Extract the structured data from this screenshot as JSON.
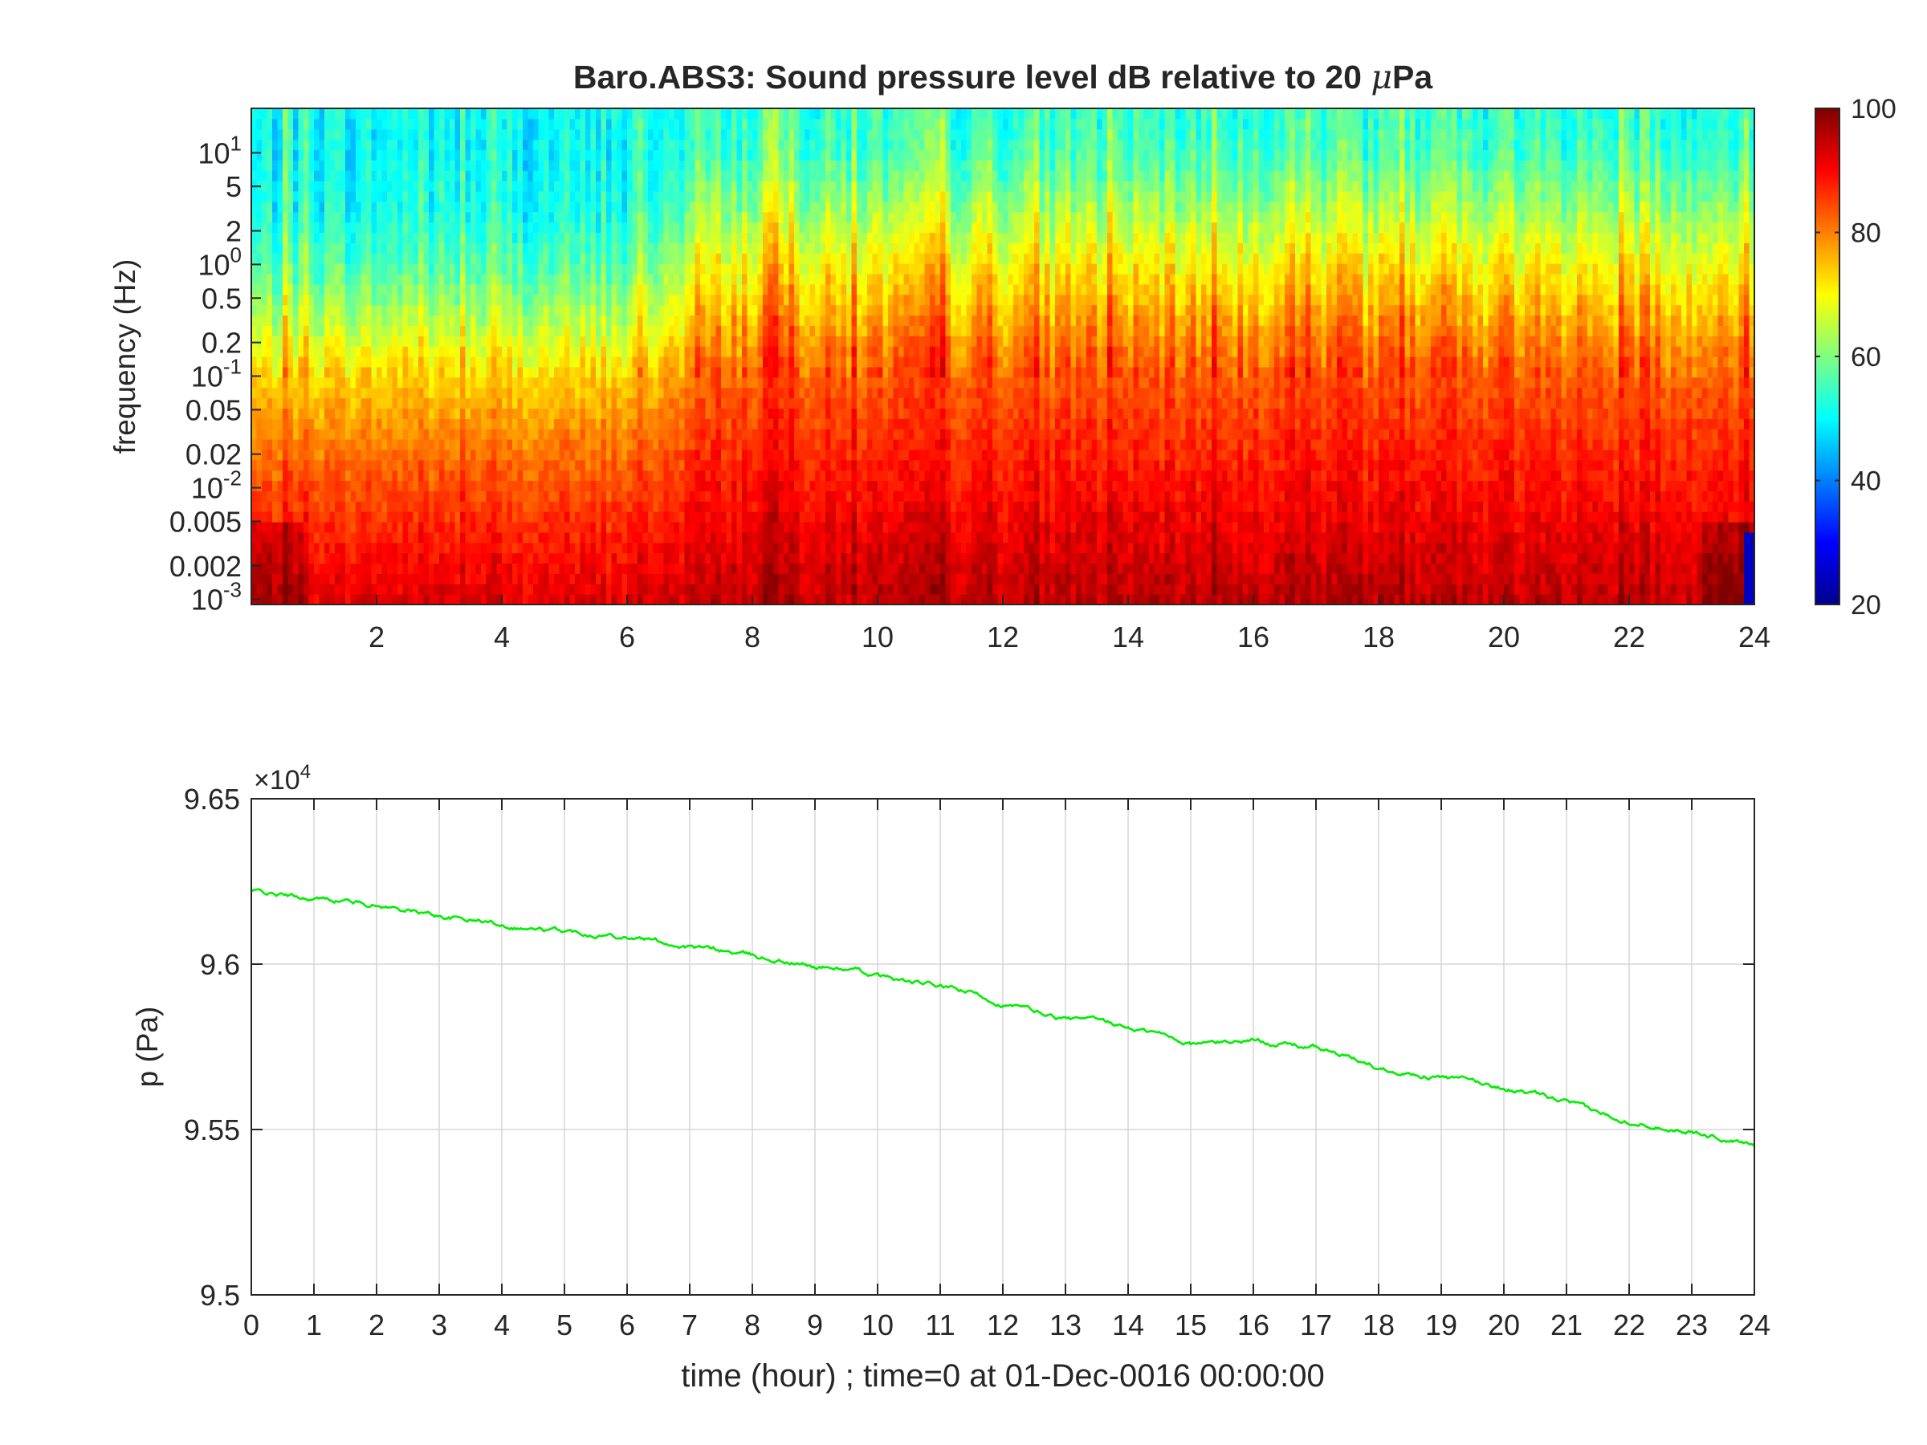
{
  "figure": {
    "background": "#ffffff",
    "axis_color": "#262626",
    "grid_color": "#d6d6d6"
  },
  "chart_data": [
    {
      "type": "heatmap",
      "title_prefix": "Baro.ABS3: Sound pressure level dB relative to 20 ",
      "title_mu": "μ",
      "title_suffix": "Pa",
      "xlabel": "",
      "ylabel": "frequency (Hz)",
      "x_scale": "linear",
      "y_scale": "log",
      "xlim": [
        0,
        24
      ],
      "ylim": [
        0.0009,
        25
      ],
      "x_ticks": [
        2,
        4,
        6,
        8,
        10,
        12,
        14,
        16,
        18,
        20,
        22,
        24
      ],
      "x_tick_labels": [
        "2",
        "4",
        "6",
        "8",
        "10",
        "12",
        "14",
        "16",
        "18",
        "20",
        "22",
        "24"
      ],
      "y_ticks_plain": [
        {
          "value": 5,
          "label": "5"
        },
        {
          "value": 2,
          "label": "2"
        },
        {
          "value": 0.5,
          "label": "0.5"
        },
        {
          "value": 0.2,
          "label": "0.2"
        },
        {
          "value": 0.05,
          "label": "0.05"
        },
        {
          "value": 0.02,
          "label": "0.02"
        },
        {
          "value": 0.005,
          "label": "0.005"
        },
        {
          "value": 0.002,
          "label": "0.002"
        }
      ],
      "y_ticks_power": [
        {
          "value": 10,
          "base": "10",
          "exp": "1"
        },
        {
          "value": 1,
          "base": "10",
          "exp": "0"
        },
        {
          "value": 0.1,
          "base": "10",
          "exp": "-1"
        },
        {
          "value": 0.01,
          "base": "10",
          "exp": "-2"
        },
        {
          "value": 0.001,
          "base": "10",
          "exp": "-3"
        }
      ],
      "colormap": "jet",
      "colorbar": {
        "range": [
          20,
          100
        ],
        "ticks": [
          20,
          40,
          60,
          80,
          100
        ],
        "tick_labels": [
          "20",
          "40",
          "60",
          "80",
          "100"
        ],
        "location": "right"
      },
      "description_profile_dB": {
        "log10_freq": [
          -3,
          -2.5,
          -2,
          -1.5,
          -1,
          -0.5,
          0,
          0.5,
          1,
          1.4
        ],
        "quiet_period_hours_0_to_7": [
          92,
          88,
          84,
          79,
          73,
          64,
          56,
          51,
          50,
          50
        ],
        "active_period_hours_7_to_24": [
          95,
          92,
          89,
          86,
          83,
          77,
          70,
          62,
          55,
          53
        ]
      },
      "grid": false
    },
    {
      "type": "line",
      "title": "",
      "xlabel": "time (hour) ; time=0 at 01-Dec-0016 00:00:00",
      "ylabel": "p (Pa)",
      "y_exponent_prefix": "×10",
      "y_exponent": "4",
      "xlim": [
        0,
        24
      ],
      "ylim": [
        9.5,
        9.65
      ],
      "x_ticks": [
        0,
        1,
        2,
        3,
        4,
        5,
        6,
        7,
        8,
        9,
        10,
        11,
        12,
        13,
        14,
        15,
        16,
        17,
        18,
        19,
        20,
        21,
        22,
        23,
        24
      ],
      "x_tick_labels": [
        "0",
        "1",
        "2",
        "3",
        "4",
        "5",
        "6",
        "7",
        "8",
        "9",
        "10",
        "11",
        "12",
        "13",
        "14",
        "15",
        "16",
        "17",
        "18",
        "19",
        "20",
        "21",
        "22",
        "23",
        "24"
      ],
      "y_ticks": [
        9.5,
        9.55,
        9.6,
        9.65
      ],
      "y_tick_labels": [
        "9.5",
        "9.55",
        "9.6",
        "9.65"
      ],
      "grid": true,
      "series": [
        {
          "color": "#00ee00",
          "x": [
            0,
            0.5,
            1,
            1.5,
            2,
            2.5,
            3,
            3.5,
            4,
            4.5,
            5,
            5.5,
            6,
            6.5,
            7,
            7.5,
            8,
            8.5,
            9,
            9.5,
            10,
            10.5,
            11,
            11.5,
            12,
            12.5,
            13,
            13.5,
            14,
            14.5,
            15,
            15.5,
            16,
            16.5,
            17,
            17.5,
            18,
            18.5,
            19,
            19.5,
            20,
            20.5,
            21,
            21.5,
            22,
            22.5,
            23,
            23.5,
            24
          ],
          "y": [
            9.6222,
            9.6208,
            9.6196,
            9.6193,
            9.6179,
            9.6163,
            9.6145,
            9.6134,
            9.6122,
            9.6106,
            9.6099,
            9.6093,
            9.6085,
            9.607,
            9.6051,
            9.6041,
            9.6024,
            9.6009,
            9.5991,
            9.5985,
            9.5964,
            9.5945,
            9.5932,
            9.5912,
            9.588,
            9.5856,
            9.5833,
            9.5826,
            9.5808,
            9.5789,
            9.576,
            9.5764,
            9.577,
            9.576,
            9.5747,
            9.5718,
            9.5686,
            9.567,
            9.5658,
            9.5645,
            9.5626,
            9.5604,
            9.5581,
            9.5549,
            9.5528,
            9.5512,
            9.5493,
            9.5472,
            9.5451
          ]
        }
      ]
    }
  ]
}
